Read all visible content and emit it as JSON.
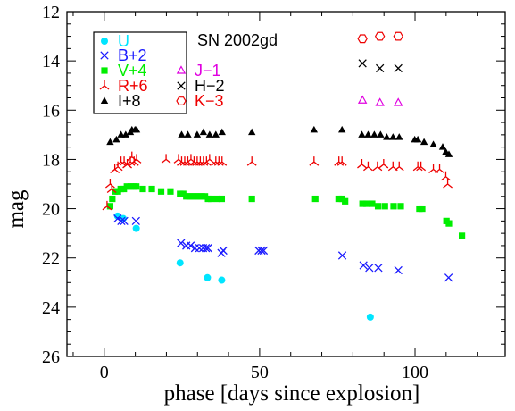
{
  "chart_data": {
    "type": "scatter",
    "title": "SN 2002gd",
    "xlabel": "phase [days since explosion]",
    "ylabel": "mag",
    "xlim": [
      -12,
      129
    ],
    "ylim": [
      26,
      12
    ],
    "y_inverted": true,
    "xticks": [
      0,
      50,
      100
    ],
    "yticks": [
      12,
      14,
      16,
      18,
      20,
      22,
      24,
      26
    ],
    "grid": false,
    "legend_position": "top-left",
    "series": [
      {
        "name": "U",
        "marker": "circle-filled",
        "color": "#00e5ff",
        "x": [
          4.3,
          6.1,
          10.3,
          24.4,
          33.2,
          37.8,
          85.6
        ],
        "y": [
          20.3,
          20.4,
          20.8,
          22.2,
          22.8,
          22.9,
          24.4
        ]
      },
      {
        "name": "B+2",
        "marker": "x",
        "color": "#1a1aff",
        "x": [
          4.3,
          5.5,
          6.4,
          10.2,
          24.7,
          26.4,
          27.8,
          29.2,
          30.6,
          31.8,
          32.7,
          33.4,
          37.7,
          38.3,
          49.7,
          50.6,
          51.3,
          76.6,
          83.4,
          85.3,
          88.2,
          94.6,
          110.8
        ],
        "y": [
          20.4,
          20.5,
          20.5,
          20.5,
          21.4,
          21.5,
          21.5,
          21.6,
          21.6,
          21.6,
          21.6,
          21.6,
          21.8,
          21.7,
          21.7,
          21.7,
          21.7,
          21.9,
          22.3,
          22.4,
          22.4,
          22.5,
          22.8
        ]
      },
      {
        "name": "V+4",
        "marker": "square-filled",
        "color": "#00ee00",
        "x": [
          1.9,
          2.6,
          3.4,
          4.4,
          5.3,
          6.3,
          7.3,
          8.5,
          9.4,
          10.3,
          12.4,
          15.3,
          18.3,
          21.3,
          24.4,
          25.4,
          26.4,
          27.4,
          28.4,
          29.4,
          30.4,
          31.4,
          32.4,
          33.4,
          34.4,
          36.4,
          37.8,
          47.5,
          67.9,
          75.4,
          76.5,
          77.5,
          83.1,
          84.4,
          86.2,
          88.1,
          90.3,
          93.1,
          95.4,
          101.4,
          102.3,
          110.1,
          110.9,
          115.1
        ],
        "y": [
          19.9,
          19.6,
          19.3,
          19.3,
          19.2,
          19.2,
          19.1,
          19.1,
          19.1,
          19.1,
          19.2,
          19.2,
          19.3,
          19.3,
          19.4,
          19.4,
          19.5,
          19.5,
          19.5,
          19.5,
          19.5,
          19.5,
          19.5,
          19.6,
          19.6,
          19.6,
          19.6,
          19.6,
          19.6,
          19.6,
          19.6,
          19.7,
          19.8,
          19.8,
          19.8,
          19.9,
          19.9,
          19.9,
          19.9,
          20.0,
          20.0,
          20.5,
          20.6,
          21.1
        ]
      },
      {
        "name": "R+6",
        "marker": "tri-down",
        "color": "#ee0000",
        "x": [
          0.9,
          1.9,
          2.4,
          3.4,
          4.4,
          5.4,
          6.4,
          7.4,
          8.4,
          8.9,
          9.6,
          10.4,
          19.9,
          23.9,
          24.9,
          25.9,
          26.9,
          27.9,
          28.9,
          29.9,
          30.9,
          31.9,
          32.9,
          33.9,
          35.9,
          36.9,
          37.9,
          47.5,
          67.5,
          75.5,
          76.5,
          82.9,
          84.9,
          87.9,
          89.9,
          92.9,
          94.9,
          100.9,
          101.9,
          105.9,
          107.9,
          109.9,
          110.5
        ],
        "y": [
          19.9,
          19.0,
          19.2,
          18.4,
          18.3,
          18.1,
          18.1,
          18.2,
          18.1,
          17.9,
          18.1,
          18.0,
          18.0,
          18.0,
          18.1,
          18.1,
          18.1,
          18.0,
          18.1,
          18.1,
          18.1,
          18.1,
          18.1,
          18.0,
          18.1,
          18.1,
          18.1,
          18.1,
          18.1,
          18.1,
          18.1,
          18.2,
          18.3,
          18.3,
          18.2,
          18.3,
          18.3,
          18.3,
          18.3,
          18.4,
          18.4,
          18.7,
          19.0
        ]
      },
      {
        "name": "I+8",
        "marker": "triangle-filled",
        "color": "#000000",
        "x": [
          1.9,
          3.9,
          5.4,
          6.9,
          8.4,
          8.9,
          9.9,
          10.4,
          24.9,
          26.9,
          29.9,
          31.9,
          33.9,
          35.9,
          37.9,
          47.5,
          67.5,
          76.5,
          82.9,
          84.9,
          86.9,
          88.9,
          90.9,
          92.9,
          94.9,
          99.9,
          100.9,
          102.9,
          105.9,
          108.9,
          109.9,
          110.9
        ],
        "y": [
          17.3,
          17.2,
          17.0,
          17.0,
          16.9,
          16.8,
          16.8,
          16.8,
          17.0,
          17.0,
          17.0,
          16.9,
          17.0,
          17.0,
          16.9,
          16.9,
          16.8,
          16.8,
          17.0,
          17.0,
          17.0,
          17.0,
          17.1,
          17.1,
          17.1,
          17.2,
          17.2,
          17.3,
          17.4,
          17.5,
          17.7,
          17.8
        ]
      },
      {
        "name": "J−1",
        "marker": "triangle-open",
        "color": "#e000e0",
        "x": [
          83.1,
          88.7,
          94.6
        ],
        "y": [
          15.6,
          15.7,
          15.7
        ]
      },
      {
        "name": "H−2",
        "marker": "x",
        "color": "#000000",
        "x": [
          83.1,
          88.7,
          94.6
        ],
        "y": [
          14.1,
          14.3,
          14.3
        ]
      },
      {
        "name": "K−3",
        "marker": "hexagon-open",
        "color": "#ee0000",
        "x": [
          83.1,
          88.7,
          94.6
        ],
        "y": [
          13.1,
          13.0,
          13.0
        ]
      }
    ]
  }
}
